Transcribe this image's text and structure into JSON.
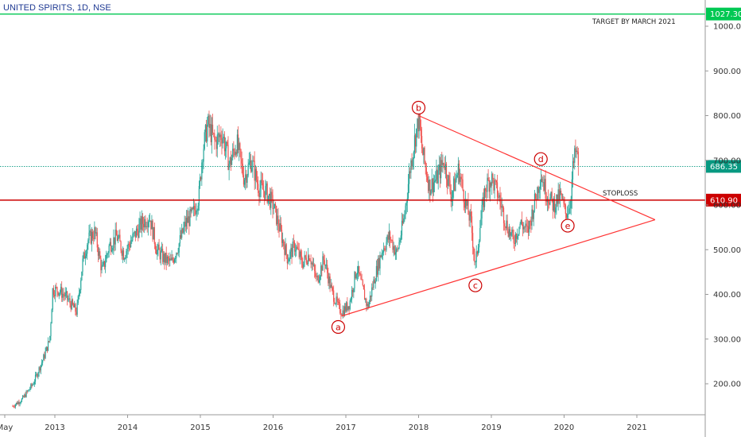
{
  "header": {
    "title": "UNITED SPIRITS, 1D, NSE"
  },
  "colors": {
    "up": "#26a69a",
    "down": "#ef5350",
    "target": "#00c853",
    "stoploss": "#cc0000",
    "current": "#089981",
    "pattern": "#ff3333",
    "wave": "#cc0000"
  },
  "chart_data": {
    "type": "candlestick",
    "title": "UNITED SPIRITS, 1D, NSE",
    "x_ticks": [
      "May",
      "2013",
      "2014",
      "2015",
      "2016",
      "2017",
      "2018",
      "2019",
      "2020",
      "2021"
    ],
    "y_ticks": [
      "200.00",
      "300.00",
      "400.00",
      "500.00",
      "600.00",
      "700.00",
      "800.00",
      "900.00",
      "1000.00"
    ],
    "ylim": [
      130,
      1060
    ],
    "xlim": [
      2012.4,
      2022.2
    ],
    "price_lines": {
      "target": {
        "value": 1027.3,
        "label": "1027.30"
      },
      "current": {
        "value": 686.35,
        "label": "686.35"
      },
      "stoploss": {
        "value": 610.9,
        "label": "610.90"
      }
    },
    "annotations": {
      "target_text": "TARGET BY MARCH 2021",
      "stoploss_text": "STOPLOSS"
    },
    "waves": [
      {
        "label": "a",
        "x": 2016.95,
        "y": 352
      },
      {
        "label": "b",
        "x": 2018.0,
        "y": 800
      },
      {
        "label": "c",
        "x": 2018.78,
        "y": 445
      },
      {
        "label": "d",
        "x": 2019.68,
        "y": 685
      },
      {
        "label": "e",
        "x": 2020.05,
        "y": 575
      }
    ],
    "triangle": {
      "upper": [
        [
          2018.0,
          800
        ],
        [
          2021.25,
          567
        ]
      ],
      "lower": [
        [
          2016.95,
          352
        ],
        [
          2021.25,
          567
        ]
      ]
    },
    "price_series": [
      [
        2012.42,
        150
      ],
      [
        2012.55,
        165
      ],
      [
        2012.7,
        200
      ],
      [
        2012.85,
        260
      ],
      [
        2012.93,
        300
      ],
      [
        2012.97,
        410
      ],
      [
        2013.05,
        410
      ],
      [
        2013.15,
        395
      ],
      [
        2013.3,
        360
      ],
      [
        2013.38,
        470
      ],
      [
        2013.45,
        520
      ],
      [
        2013.55,
        540
      ],
      [
        2013.65,
        450
      ],
      [
        2013.75,
        510
      ],
      [
        2013.85,
        530
      ],
      [
        2013.95,
        490
      ],
      [
        2014.05,
        520
      ],
      [
        2014.2,
        560
      ],
      [
        2014.3,
        575
      ],
      [
        2014.4,
        500
      ],
      [
        2014.5,
        480
      ],
      [
        2014.6,
        470
      ],
      [
        2014.7,
        510
      ],
      [
        2014.8,
        560
      ],
      [
        2014.9,
        580
      ],
      [
        2014.98,
        620
      ],
      [
        2015.03,
        720
      ],
      [
        2015.1,
        780
      ],
      [
        2015.2,
        740
      ],
      [
        2015.3,
        760
      ],
      [
        2015.4,
        690
      ],
      [
        2015.5,
        740
      ],
      [
        2015.6,
        660
      ],
      [
        2015.7,
        700
      ],
      [
        2015.8,
        640
      ],
      [
        2015.9,
        630
      ],
      [
        2016.0,
        600
      ],
      [
        2016.1,
        540
      ],
      [
        2016.2,
        480
      ],
      [
        2016.3,
        510
      ],
      [
        2016.4,
        470
      ],
      [
        2016.5,
        490
      ],
      [
        2016.6,
        430
      ],
      [
        2016.7,
        480
      ],
      [
        2016.8,
        410
      ],
      [
        2016.9,
        370
      ],
      [
        2016.95,
        360
      ],
      [
        2017.05,
        380
      ],
      [
        2017.15,
        460
      ],
      [
        2017.25,
        400
      ],
      [
        2017.3,
        370
      ],
      [
        2017.4,
        440
      ],
      [
        2017.5,
        500
      ],
      [
        2017.6,
        530
      ],
      [
        2017.7,
        490
      ],
      [
        2017.8,
        570
      ],
      [
        2017.88,
        680
      ],
      [
        2017.95,
        750
      ],
      [
        2018.0,
        790
      ],
      [
        2018.05,
        720
      ],
      [
        2018.15,
        640
      ],
      [
        2018.25,
        660
      ],
      [
        2018.35,
        700
      ],
      [
        2018.45,
        620
      ],
      [
        2018.55,
        680
      ],
      [
        2018.65,
        600
      ],
      [
        2018.72,
        560
      ],
      [
        2018.78,
        460
      ],
      [
        2018.85,
        560
      ],
      [
        2018.92,
        640
      ],
      [
        2019.0,
        660
      ],
      [
        2019.1,
        620
      ],
      [
        2019.2,
        560
      ],
      [
        2019.3,
        520
      ],
      [
        2019.4,
        560
      ],
      [
        2019.5,
        540
      ],
      [
        2019.6,
        610
      ],
      [
        2019.68,
        670
      ],
      [
        2019.75,
        630
      ],
      [
        2019.85,
        600
      ],
      [
        2019.95,
        620
      ],
      [
        2020.02,
        580
      ],
      [
        2020.08,
        600
      ],
      [
        2020.12,
        680
      ],
      [
        2020.16,
        720
      ],
      [
        2020.2,
        690
      ]
    ]
  }
}
